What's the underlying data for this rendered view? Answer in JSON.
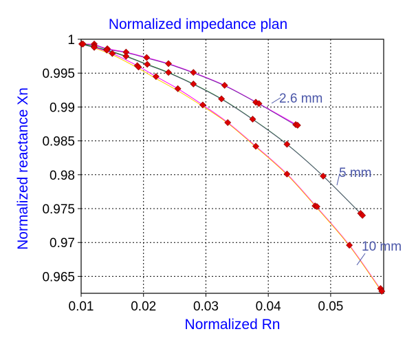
{
  "chart_data": {
    "type": "line",
    "title": "Normalized impedance plan",
    "xlabel": "Normalized Rn",
    "ylabel": "Normalized reactance Xn",
    "xlim": [
      0.01,
      0.0585
    ],
    "ylim": [
      0.9625,
      1.0
    ],
    "x_ticks": [
      0.01,
      0.02,
      0.03,
      0.04,
      0.05
    ],
    "x_tick_labels": [
      "0.01",
      "0.02",
      "0.03",
      "0.04",
      "0.05"
    ],
    "y_ticks": [
      0.965,
      0.97,
      0.975,
      0.98,
      0.985,
      0.99,
      0.995,
      1.0
    ],
    "y_tick_labels": [
      "0.965",
      "0.97",
      "0.975",
      "0.98",
      "0.985",
      "0.99",
      "0.995",
      "1"
    ],
    "grid": true,
    "text_color": "#0000ff",
    "marker_color": "#dd0000",
    "series_label_color": "#4a56a8",
    "series": [
      {
        "name": "2.6 mm",
        "points": [
          [
            0.0101,
            0.9993
          ],
          [
            0.0121,
            0.9992
          ],
          [
            0.0142,
            0.9986
          ],
          [
            0.0172,
            0.9981
          ],
          [
            0.0205,
            0.9973
          ],
          [
            0.024,
            0.9964
          ],
          [
            0.028,
            0.9951
          ],
          [
            0.033,
            0.9932
          ],
          [
            0.0385,
            0.9905
          ],
          [
            0.0447,
            0.9873
          ]
        ],
        "curves": [
          {
            "color": "#ff00ff",
            "points": [
              [
                0.0101,
                0.9993
              ],
              [
                0.0121,
                0.9992
              ],
              [
                0.0142,
                0.9986
              ],
              [
                0.0172,
                0.9981
              ],
              [
                0.0205,
                0.9973
              ],
              [
                0.024,
                0.9964
              ],
              [
                0.028,
                0.9951
              ],
              [
                0.033,
                0.9932
              ],
              [
                0.0385,
                0.9905
              ],
              [
                0.0447,
                0.9873
              ]
            ]
          },
          {
            "color": "#7030a0",
            "points": [
              [
                0.0101,
                0.9993
              ],
              [
                0.0122,
                0.9991
              ],
              [
                0.0143,
                0.9985
              ],
              [
                0.0173,
                0.998
              ],
              [
                0.0206,
                0.9972
              ],
              [
                0.0241,
                0.9963
              ],
              [
                0.0281,
                0.995
              ],
              [
                0.0331,
                0.9931
              ],
              [
                0.0386,
                0.9904
              ],
              [
                0.0446,
                0.9872
              ]
            ]
          }
        ],
        "markers": [
          [
            0.0101,
            0.9993
          ],
          [
            0.0121,
            0.9993
          ],
          [
            0.0121,
            0.999
          ],
          [
            0.0142,
            0.9986
          ],
          [
            0.0172,
            0.9981
          ],
          [
            0.0205,
            0.9973
          ],
          [
            0.024,
            0.9964
          ],
          [
            0.028,
            0.9951
          ],
          [
            0.033,
            0.9932
          ],
          [
            0.038,
            0.9907
          ],
          [
            0.0385,
            0.9905
          ],
          [
            0.0444,
            0.9874
          ],
          [
            0.0447,
            0.9873
          ]
        ]
      },
      {
        "name": "5 mm",
        "points": [
          [
            0.0103,
            0.9993
          ],
          [
            0.0141,
            0.9984
          ],
          [
            0.0172,
            0.9975
          ],
          [
            0.0206,
            0.9963
          ],
          [
            0.024,
            0.9951
          ],
          [
            0.028,
            0.9934
          ],
          [
            0.0325,
            0.9912
          ],
          [
            0.0375,
            0.9882
          ],
          [
            0.043,
            0.9845
          ],
          [
            0.0488,
            0.9798
          ],
          [
            0.055,
            0.9741
          ]
        ],
        "curves": [
          {
            "color": "#008000",
            "points": [
              [
                0.0103,
                0.9993
              ],
              [
                0.0141,
                0.9984
              ],
              [
                0.0172,
                0.9975
              ],
              [
                0.0206,
                0.9963
              ],
              [
                0.024,
                0.9951
              ],
              [
                0.028,
                0.9934
              ],
              [
                0.0325,
                0.9912
              ],
              [
                0.0375,
                0.9882
              ],
              [
                0.043,
                0.9845
              ],
              [
                0.0488,
                0.9798
              ],
              [
                0.055,
                0.9741
              ]
            ]
          },
          {
            "color": "#555577",
            "points": [
              [
                0.0103,
                0.9992
              ],
              [
                0.0142,
                0.9983
              ],
              [
                0.0173,
                0.9974
              ],
              [
                0.0207,
                0.9962
              ],
              [
                0.0241,
                0.995
              ],
              [
                0.0281,
                0.9933
              ],
              [
                0.0326,
                0.9911
              ],
              [
                0.0376,
                0.9881
              ],
              [
                0.0431,
                0.9844
              ],
              [
                0.0489,
                0.9797
              ],
              [
                0.0551,
                0.974
              ]
            ]
          }
        ],
        "markers": [
          [
            0.0103,
            0.9993
          ],
          [
            0.0141,
            0.9984
          ],
          [
            0.0172,
            0.9975
          ],
          [
            0.0206,
            0.9963
          ],
          [
            0.024,
            0.9951
          ],
          [
            0.028,
            0.9934
          ],
          [
            0.0325,
            0.9912
          ],
          [
            0.0375,
            0.9882
          ],
          [
            0.043,
            0.9845
          ],
          [
            0.0488,
            0.9798
          ],
          [
            0.0548,
            0.9743
          ],
          [
            0.0551,
            0.974
          ]
        ]
      },
      {
        "name": "10 mm",
        "points": [
          [
            0.0121,
            0.9988
          ],
          [
            0.015,
            0.9979
          ],
          [
            0.019,
            0.9961
          ],
          [
            0.022,
            0.9945
          ],
          [
            0.0255,
            0.9927
          ],
          [
            0.0295,
            0.9903
          ],
          [
            0.0335,
            0.9877
          ],
          [
            0.038,
            0.9842
          ],
          [
            0.043,
            0.9801
          ],
          [
            0.0477,
            0.9753
          ],
          [
            0.053,
            0.9696
          ],
          [
            0.0582,
            0.9628
          ]
        ],
        "curves": [
          {
            "color": "#ff00ff",
            "points": [
              [
                0.0121,
                0.9988
              ],
              [
                0.015,
                0.9979
              ],
              [
                0.019,
                0.9961
              ],
              [
                0.022,
                0.9945
              ],
              [
                0.0255,
                0.9927
              ],
              [
                0.0295,
                0.9903
              ],
              [
                0.0335,
                0.9877
              ],
              [
                0.038,
                0.9842
              ],
              [
                0.043,
                0.9801
              ],
              [
                0.0477,
                0.9753
              ],
              [
                0.053,
                0.9696
              ],
              [
                0.0582,
                0.9628
              ]
            ]
          },
          {
            "color": "#ffcc00",
            "points": [
              [
                0.0121,
                0.9987
              ],
              [
                0.015,
                0.9977
              ],
              [
                0.019,
                0.9958
              ],
              [
                0.022,
                0.9942
              ],
              [
                0.0255,
                0.9924
              ],
              [
                0.0295,
                0.9901
              ],
              [
                0.0335,
                0.9876
              ],
              [
                0.038,
                0.9841
              ],
              [
                0.043,
                0.98
              ],
              [
                0.0477,
                0.9752
              ],
              [
                0.053,
                0.9695
              ],
              [
                0.0582,
                0.9627
              ]
            ]
          }
        ],
        "markers": [
          [
            0.0121,
            0.9988
          ],
          [
            0.015,
            0.9979
          ],
          [
            0.019,
            0.9961
          ],
          [
            0.0192,
            0.9959
          ],
          [
            0.022,
            0.9945
          ],
          [
            0.0255,
            0.9927
          ],
          [
            0.0295,
            0.9903
          ],
          [
            0.0335,
            0.9877
          ],
          [
            0.038,
            0.9842
          ],
          [
            0.043,
            0.9801
          ],
          [
            0.0475,
            0.9754
          ],
          [
            0.0478,
            0.9753
          ],
          [
            0.053,
            0.9696
          ],
          [
            0.058,
            0.9632
          ],
          [
            0.0582,
            0.9628
          ]
        ]
      }
    ]
  }
}
